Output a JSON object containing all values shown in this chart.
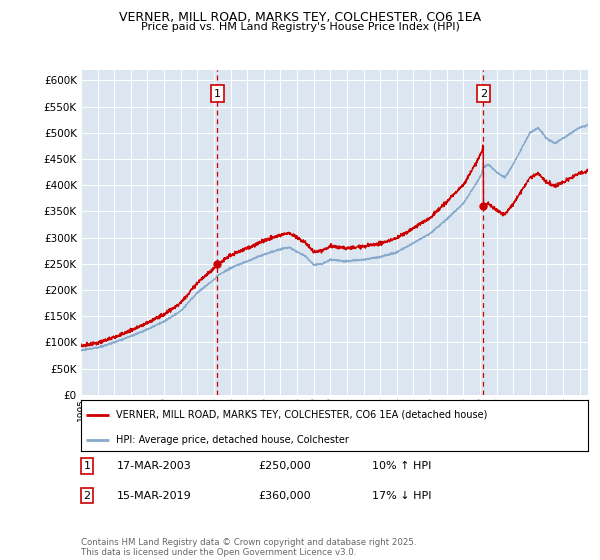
{
  "title": "VERNER, MILL ROAD, MARKS TEY, COLCHESTER, CO6 1EA",
  "subtitle": "Price paid vs. HM Land Registry's House Price Index (HPI)",
  "sale1_date": "17-MAR-2003",
  "sale1_price": 250000,
  "sale1_hpi_diff": "10% ↑ HPI",
  "sale2_date": "15-MAR-2019",
  "sale2_price": 360000,
  "sale2_hpi_diff": "17% ↓ HPI",
  "legend_label_red": "VERNER, MILL ROAD, MARKS TEY, COLCHESTER, CO6 1EA (detached house)",
  "legend_label_blue": "HPI: Average price, detached house, Colchester",
  "footer": "Contains HM Land Registry data © Crown copyright and database right 2025.\nThis data is licensed under the Open Government Licence v3.0.",
  "color_red": "#cc0000",
  "color_blue": "#88aacc",
  "color_bg": "#dce6f0",
  "ylim": [
    0,
    620000
  ],
  "yticks": [
    0,
    50000,
    100000,
    150000,
    200000,
    250000,
    300000,
    350000,
    400000,
    450000,
    500000,
    550000,
    600000
  ],
  "sale1_year": 2003.21,
  "sale2_year": 2019.21,
  "xmin": 1995,
  "xmax": 2025.5
}
